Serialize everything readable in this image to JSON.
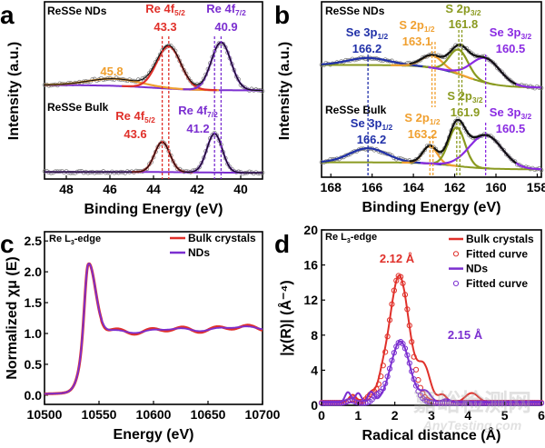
{
  "watermark": {
    "line1": "嘉峪检测网",
    "line2": "AnyTesting.com"
  },
  "chart_data": [
    {
      "panel_label": "a",
      "type": "line",
      "xlabel": "Binding Energy (eV)",
      "ylabel": "Intensity (a.u.)",
      "xlim": [
        49,
        39
      ],
      "xticks": [
        "48",
        "46",
        "44",
        "42",
        "40"
      ],
      "x_reversed": true,
      "samples": [
        {
          "name": "ReSSe NDs",
          "peaks": [
            {
              "center": 45.8,
              "height": 0.04,
              "width": 1.2,
              "color": "#f0a030"
            },
            {
              "center": 43.3,
              "height": 0.24,
              "width": 0.55,
              "color": "#e0302a"
            },
            {
              "center": 40.9,
              "height": 0.27,
              "width": 0.45,
              "color": "#7b2fd0"
            }
          ],
          "labels": [
            {
              "text": "Re 4f",
              "sub": "5/2",
              "value": "43.3",
              "color": "#e0302a"
            },
            {
              "text": "Re 4f",
              "sub": "7/2",
              "value": "40.9",
              "color": "#7b2fd0"
            },
            {
              "text": "",
              "sub": "",
              "value": "45.8",
              "color": "#f0a030"
            }
          ]
        },
        {
          "name": "ReSSe Bulk",
          "peaks": [
            {
              "center": 43.6,
              "height": 0.17,
              "width": 0.35,
              "color": "#e0302a"
            },
            {
              "center": 41.2,
              "height": 0.22,
              "width": 0.35,
              "color": "#7b2fd0"
            }
          ],
          "labels": [
            {
              "text": "Re 4f",
              "sub": "5/2",
              "value": "43.6",
              "color": "#e0302a"
            },
            {
              "text": "Re 4f",
              "sub": "7/2",
              "value": "41.2",
              "color": "#7b2fd0"
            }
          ]
        }
      ]
    },
    {
      "panel_label": "b",
      "type": "line",
      "xlabel": "Binding Energy (eV)",
      "ylabel": "Intensity (a.u.)",
      "xlim": [
        168.45,
        157.8
      ],
      "xticks": [
        "168",
        "166",
        "164",
        "162",
        "160",
        "158"
      ],
      "x_reversed": true,
      "samples": [
        {
          "name": "ReSSe NDs",
          "peaks": [
            {
              "center": 166.2,
              "height": 0.04,
              "width": 1.0,
              "color": "#2030a8"
            },
            {
              "center": 163.1,
              "height": 0.07,
              "width": 0.5,
              "color": "#f0a030"
            },
            {
              "center": 161.8,
              "height": 0.14,
              "width": 0.45,
              "color": "#8a9a20"
            },
            {
              "center": 160.5,
              "height": 0.14,
              "width": 0.7,
              "color": "#8a2be2"
            }
          ],
          "labels": [
            {
              "text": "Se 3p",
              "sub": "1/2",
              "value": "166.2",
              "color": "#2030a8"
            },
            {
              "text": "S 2p",
              "sub": "1/2",
              "value": "163.1",
              "color": "#f0a030"
            },
            {
              "text": "S 2p",
              "sub": "3/2",
              "value": "161.8",
              "color": "#8a9a20"
            },
            {
              "text": "Se 3p",
              "sub": "3/2",
              "value": "160.5",
              "color": "#8a2be2"
            }
          ]
        },
        {
          "name": "ReSSe Bulk",
          "peaks": [
            {
              "center": 166.2,
              "height": 0.08,
              "width": 0.9,
              "color": "#2030a8"
            },
            {
              "center": 163.2,
              "height": 0.1,
              "width": 0.35,
              "color": "#f0a030"
            },
            {
              "center": 161.9,
              "height": 0.22,
              "width": 0.4,
              "color": "#8a9a20"
            },
            {
              "center": 160.5,
              "height": 0.19,
              "width": 0.8,
              "color": "#8a2be2"
            }
          ],
          "labels": [
            {
              "text": "Se 3p",
              "sub": "1/2",
              "value": "166.2",
              "color": "#2030a8"
            },
            {
              "text": "S 2p",
              "sub": "1/2",
              "value": "163.2",
              "color": "#f0a030"
            },
            {
              "text": "S 2p",
              "sub": "3/2",
              "value": "161.9",
              "color": "#8a9a20"
            },
            {
              "text": "Se 3p",
              "sub": "3/2",
              "value": "160.5",
              "color": "#8a2be2"
            }
          ]
        }
      ]
    },
    {
      "panel_label": "c",
      "type": "line",
      "title": "Re L",
      "title_sub": "3",
      "title_suffix": "-edge",
      "xlabel": "Energy (eV)",
      "ylabel": "Normalized χμ (E)",
      "xlim": [
        10500,
        10700
      ],
      "ylim": [
        -0.15,
        2.65
      ],
      "xticks": [
        "10500",
        "10550",
        "10600",
        "10650",
        "10700"
      ],
      "yticks": [
        "0.0",
        "0.5",
        "1.0",
        "1.5",
        "2.0",
        "2.5"
      ],
      "legend_position": "top-right",
      "series": [
        {
          "name": "Bulk crystals",
          "color": "#e0302a",
          "white_line_energy": 10540,
          "white_line_peak": 2.15
        },
        {
          "name": "NDs",
          "color": "#7b2fd0",
          "white_line_energy": 10540,
          "white_line_peak": 2.15
        }
      ]
    },
    {
      "panel_label": "d",
      "type": "line",
      "title": "Re L",
      "title_sub": "3",
      "title_suffix": "-edge",
      "xlabel": "Radical distance (Å)",
      "ylabel": "|χ(R)| (Å⁻⁴)",
      "xlim": [
        0,
        6
      ],
      "ylim": [
        0,
        20
      ],
      "xticks": [
        "0",
        "1",
        "2",
        "3",
        "4",
        "5",
        "6"
      ],
      "yticks": [
        "0",
        "4",
        "8",
        "12",
        "16",
        "20"
      ],
      "legend_position": "top-right",
      "series": [
        {
          "name": "Bulk crystals",
          "style": "line",
          "color": "#e0302a",
          "peak_r": 2.12,
          "peak_value": 14.8
        },
        {
          "name": "Fitted curve",
          "style": "circles",
          "color": "#e0302a"
        },
        {
          "name": "NDs",
          "style": "line",
          "color": "#7b2fd0",
          "peak_r": 2.15,
          "peak_value": 7.3
        },
        {
          "name": "Fitted curve",
          "style": "circles",
          "color": "#7b2fd0"
        }
      ],
      "annotations": [
        {
          "text": "2.12 Å",
          "color": "#e0302a"
        },
        {
          "text": "2.15 Å",
          "color": "#7b2fd0"
        }
      ]
    }
  ]
}
